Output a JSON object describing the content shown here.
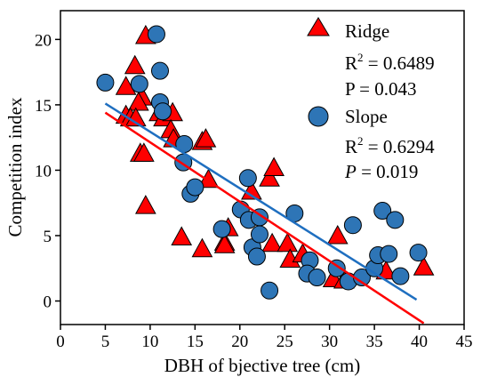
{
  "chart_data": {
    "type": "scatter",
    "xlabel": "DBH of bjective tree (cm)",
    "ylabel": "Competition index",
    "xlim": [
      0,
      45
    ],
    "ylim": [
      -1.8,
      22.2
    ],
    "xticks": [
      0,
      5,
      10,
      15,
      20,
      25,
      30,
      35,
      40,
      45
    ],
    "yticks": [
      0,
      5,
      10,
      15,
      20
    ],
    "grid": false,
    "legend_position": "top-right",
    "series": [
      {
        "name": "Ridge",
        "marker": "triangle",
        "color": "#ff0000",
        "fit_color": "#ff0000",
        "fit": {
          "x": [
            5.0,
            40.5
          ],
          "y": [
            14.4,
            -1.7
          ]
        },
        "stats": {
          "r2_base": "R",
          "r2_exp": "2",
          "r2_value": " = 0.6489",
          "p_label": "P",
          "p_value": " = 0.043"
        },
        "points": [
          {
            "x": 9.5,
            "y": 20.3
          },
          {
            "x": 8.3,
            "y": 18.0
          },
          {
            "x": 7.3,
            "y": 16.4
          },
          {
            "x": 9.1,
            "y": 15.6
          },
          {
            "x": 8.7,
            "y": 15.2
          },
          {
            "x": 7.3,
            "y": 14.2
          },
          {
            "x": 7.8,
            "y": 14.0
          },
          {
            "x": 8.4,
            "y": 14.0
          },
          {
            "x": 11.0,
            "y": 14.4
          },
          {
            "x": 11.5,
            "y": 14.0
          },
          {
            "x": 12.5,
            "y": 14.4
          },
          {
            "x": 12.3,
            "y": 13.1
          },
          {
            "x": 12.6,
            "y": 12.4
          },
          {
            "x": 15.8,
            "y": 12.2
          },
          {
            "x": 16.2,
            "y": 12.4
          },
          {
            "x": 8.9,
            "y": 11.3
          },
          {
            "x": 9.3,
            "y": 11.3
          },
          {
            "x": 9.5,
            "y": 7.3
          },
          {
            "x": 16.5,
            "y": 9.3
          },
          {
            "x": 13.5,
            "y": 4.9
          },
          {
            "x": 15.8,
            "y": 4.0
          },
          {
            "x": 18.3,
            "y": 4.5
          },
          {
            "x": 18.3,
            "y": 4.3
          },
          {
            "x": 18.7,
            "y": 5.6
          },
          {
            "x": 21.3,
            "y": 8.4
          },
          {
            "x": 23.3,
            "y": 9.4
          },
          {
            "x": 23.8,
            "y": 10.2
          },
          {
            "x": 23.6,
            "y": 4.4
          },
          {
            "x": 25.3,
            "y": 4.4
          },
          {
            "x": 25.6,
            "y": 3.2
          },
          {
            "x": 27.0,
            "y": 3.6
          },
          {
            "x": 30.9,
            "y": 5.0
          },
          {
            "x": 30.4,
            "y": 1.7
          },
          {
            "x": 31.6,
            "y": 1.6
          },
          {
            "x": 36.3,
            "y": 2.3
          },
          {
            "x": 40.5,
            "y": 2.6
          }
        ]
      },
      {
        "name": "Slope",
        "marker": "circle",
        "color": "#2e75b6",
        "fit_color": "#1f6fc0",
        "fit": {
          "x": [
            5.0,
            39.7
          ],
          "y": [
            15.1,
            0.1
          ]
        },
        "stats": {
          "r2_base": "R",
          "r2_exp": "2",
          "r2_value": " = 0.6294",
          "p_label": "P",
          "p_value": " = 0.019"
        },
        "points": [
          {
            "x": 5.0,
            "y": 16.7
          },
          {
            "x": 8.8,
            "y": 16.6
          },
          {
            "x": 10.7,
            "y": 20.4
          },
          {
            "x": 11.1,
            "y": 17.6
          },
          {
            "x": 11.1,
            "y": 15.2
          },
          {
            "x": 11.4,
            "y": 14.5
          },
          {
            "x": 13.8,
            "y": 12.0
          },
          {
            "x": 13.7,
            "y": 10.6
          },
          {
            "x": 14.5,
            "y": 8.2
          },
          {
            "x": 15.0,
            "y": 8.7
          },
          {
            "x": 18.0,
            "y": 5.5
          },
          {
            "x": 20.1,
            "y": 7.0
          },
          {
            "x": 20.9,
            "y": 9.4
          },
          {
            "x": 21.0,
            "y": 6.2
          },
          {
            "x": 22.2,
            "y": 6.4
          },
          {
            "x": 21.4,
            "y": 4.1
          },
          {
            "x": 22.2,
            "y": 5.1
          },
          {
            "x": 21.9,
            "y": 3.4
          },
          {
            "x": 23.3,
            "y": 0.8
          },
          {
            "x": 26.1,
            "y": 6.7
          },
          {
            "x": 27.8,
            "y": 3.1
          },
          {
            "x": 27.5,
            "y": 2.1
          },
          {
            "x": 28.6,
            "y": 1.8
          },
          {
            "x": 30.8,
            "y": 2.5
          },
          {
            "x": 32.1,
            "y": 1.5
          },
          {
            "x": 32.6,
            "y": 5.8
          },
          {
            "x": 33.6,
            "y": 1.8
          },
          {
            "x": 35.0,
            "y": 2.5
          },
          {
            "x": 35.4,
            "y": 3.5
          },
          {
            "x": 35.9,
            "y": 6.9
          },
          {
            "x": 36.6,
            "y": 3.6
          },
          {
            "x": 37.3,
            "y": 6.2
          },
          {
            "x": 37.9,
            "y": 1.9
          },
          {
            "x": 39.9,
            "y": 3.7
          }
        ]
      }
    ]
  }
}
